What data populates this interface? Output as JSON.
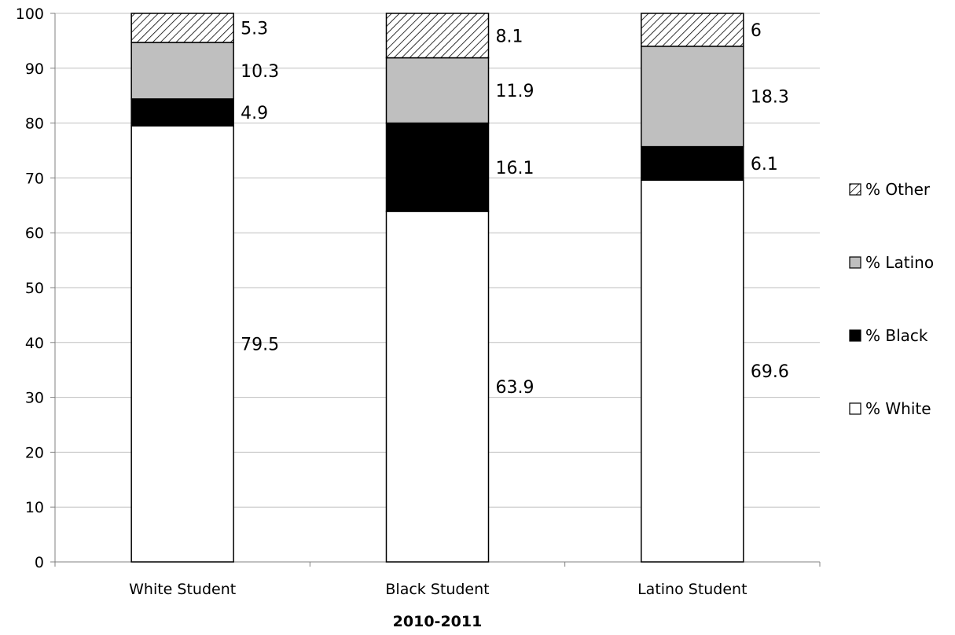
{
  "chart_data": {
    "type": "bar",
    "stacked": true,
    "title": "",
    "xlabel": "2010-2011",
    "ylabel": "",
    "ylim": [
      0,
      100
    ],
    "yticks": [
      0,
      10,
      20,
      30,
      40,
      50,
      60,
      70,
      80,
      90,
      100
    ],
    "grid": true,
    "legend_position": "right",
    "categories": [
      "White Student",
      "Black Student",
      "Latino Student"
    ],
    "series": [
      {
        "name": "% White",
        "values": [
          79.5,
          63.9,
          69.6
        ],
        "fill": "#ffffff",
        "pattern": "none"
      },
      {
        "name": "% Black",
        "values": [
          4.9,
          16.1,
          6.1
        ],
        "fill": "#000000",
        "pattern": "none"
      },
      {
        "name": "% Latino",
        "values": [
          10.3,
          11.9,
          18.3
        ],
        "fill": "#bfbfbf",
        "pattern": "none"
      },
      {
        "name": "% Other",
        "values": [
          5.3,
          8.1,
          6
        ],
        "fill": "#ffffff",
        "pattern": "diagonal-hatch"
      }
    ],
    "legend_order": [
      "% Other",
      "% Latino",
      "% Black",
      "% White"
    ],
    "colors": {
      "axis": "#808080",
      "grid": "#bfbfbf",
      "bar_border": "#000000"
    }
  }
}
